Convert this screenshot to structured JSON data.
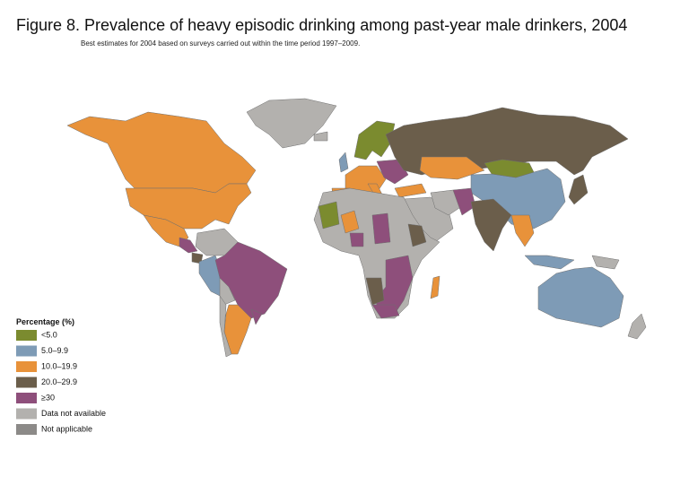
{
  "header": {
    "title": "Figure 8. Prevalence of heavy episodic drinking among past-year male drinkers, 2004",
    "subtitle": "Best estimates for 2004 based on surveys carried out within the time period 1997–2009."
  },
  "legend": {
    "title": "Percentage (%)",
    "items": [
      {
        "label": "<5.0",
        "color": "#7b8b2f"
      },
      {
        "label": "5.0–9.9",
        "color": "#7e9bb6"
      },
      {
        "label": "10.0–19.9",
        "color": "#e8923a"
      },
      {
        "label": "20.0–29.9",
        "color": "#6b5e4b"
      },
      {
        "label": "≥30",
        "color": "#8e4f7b"
      },
      {
        "label": "Data not available",
        "color": "#b3b1ae"
      },
      {
        "label": "Not applicable",
        "color": "#8c8a88"
      }
    ]
  }
}
